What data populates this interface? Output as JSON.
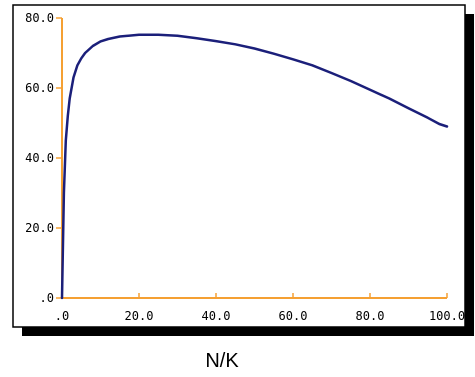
{
  "chart_data": {
    "type": "line",
    "title": "",
    "xlabel": "N/K",
    "ylabel": "",
    "xlim": [
      0,
      100
    ],
    "ylim": [
      0,
      80
    ],
    "x_ticks": [
      {
        "value": 0,
        "label": ".0"
      },
      {
        "value": 20,
        "label": "20.0"
      },
      {
        "value": 40,
        "label": "40.0"
      },
      {
        "value": 60,
        "label": "60.0"
      },
      {
        "value": 80,
        "label": "80.0"
      },
      {
        "value": 100,
        "label": "100.0"
      }
    ],
    "y_ticks": [
      {
        "value": 0,
        "label": ".0"
      },
      {
        "value": 20,
        "label": "20.0"
      },
      {
        "value": 40,
        "label": "40.0"
      },
      {
        "value": 60,
        "label": "60.0"
      },
      {
        "value": 80,
        "label": "80.0"
      }
    ],
    "grid": false,
    "legend": "none",
    "series": [
      {
        "x": [
          0,
          0.5,
          1,
          1.5,
          2,
          3,
          4,
          5,
          6,
          8,
          10,
          12,
          15,
          20,
          25,
          30,
          35,
          40,
          45,
          50,
          55,
          60,
          65,
          70,
          75,
          80,
          85,
          90,
          95,
          98,
          100
        ],
        "y": [
          0,
          30,
          45,
          52,
          57,
          63,
          66.5,
          68.5,
          70,
          72,
          73.3,
          74,
          74.7,
          75.2,
          75.2,
          74.9,
          74.2,
          73.4,
          72.5,
          71.3,
          69.8,
          68.2,
          66.5,
          64.3,
          62,
          59.5,
          57,
          54.2,
          51.5,
          49.7,
          49
        ]
      }
    ],
    "colors": {
      "line": "#1b1f7a",
      "axes": "#f5a033",
      "frame": "#000000",
      "shadow": "#000000",
      "plot_background": "#ffffff"
    }
  }
}
